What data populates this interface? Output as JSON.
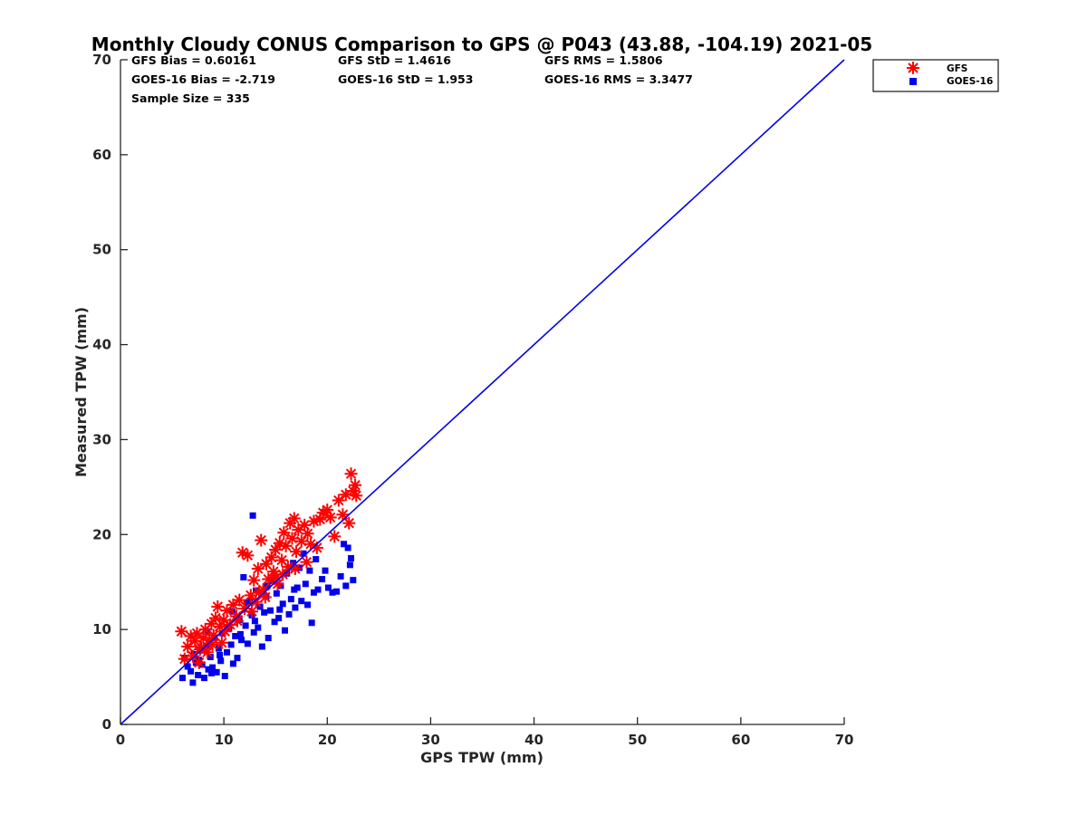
{
  "chart_data": {
    "type": "scatter",
    "title": "Monthly Cloudy CONUS Comparison to GPS @ P043 (43.88, -104.19) 2021-05",
    "xlabel": "GPS TPW (mm)",
    "ylabel": "Measured TPW (mm)",
    "xlim": [
      0,
      70
    ],
    "ylim": [
      0,
      70
    ],
    "xticks": [
      "0",
      "10",
      "20",
      "30",
      "40",
      "50",
      "60",
      "70"
    ],
    "yticks": [
      "0",
      "10",
      "20",
      "30",
      "40",
      "50",
      "60",
      "70"
    ],
    "grid": false,
    "legend_position": "top-right outside",
    "stats": {
      "gfs_bias": "GFS Bias = 0.60161",
      "gfs_std": "GFS StD = 1.4616",
      "gfs_rms": "GFS RMS = 1.5806",
      "goes_bias": "GOES-16 Bias = -2.719",
      "goes_std": "GOES-16 StD = 1.953",
      "goes_rms": "GOES-16 RMS = 3.3477",
      "sample_size": "Sample Size = 335"
    },
    "reference_line": {
      "x": [
        0,
        70
      ],
      "y": [
        0,
        70
      ],
      "color": "#0000ee"
    },
    "series": [
      {
        "name": "GFS",
        "marker": "asterisk",
        "color": "#ff0000",
        "points": [
          [
            5.9,
            9.8
          ],
          [
            6.2,
            6.9
          ],
          [
            6.5,
            8.2
          ],
          [
            6.8,
            9.3
          ],
          [
            7.0,
            7.2
          ],
          [
            7.2,
            8.8
          ],
          [
            7.4,
            9.6
          ],
          [
            7.6,
            6.5
          ],
          [
            7.8,
            8.1
          ],
          [
            8.0,
            9.1
          ],
          [
            8.2,
            10.0
          ],
          [
            8.4,
            7.6
          ],
          [
            8.6,
            8.9
          ],
          [
            8.8,
            10.6
          ],
          [
            9.0,
            9.4
          ],
          [
            9.2,
            11.2
          ],
          [
            9.4,
            12.4
          ],
          [
            9.6,
            10.3
          ],
          [
            9.8,
            8.6
          ],
          [
            10.0,
            11.0
          ],
          [
            10.3,
            12.0
          ],
          [
            10.6,
            10.5
          ],
          [
            10.9,
            12.6
          ],
          [
            11.2,
            11.4
          ],
          [
            11.5,
            13.1
          ],
          [
            11.8,
            18.1
          ],
          [
            12.0,
            12.2
          ],
          [
            12.3,
            17.8
          ],
          [
            12.6,
            13.6
          ],
          [
            12.9,
            15.2
          ],
          [
            13.1,
            12.9
          ],
          [
            13.3,
            16.4
          ],
          [
            13.6,
            19.4
          ],
          [
            13.8,
            14.2
          ],
          [
            14.1,
            16.9
          ],
          [
            14.3,
            15.3
          ],
          [
            14.6,
            17.6
          ],
          [
            14.8,
            16.1
          ],
          [
            15.0,
            18.4
          ],
          [
            15.2,
            14.8
          ],
          [
            15.4,
            19.1
          ],
          [
            15.6,
            17.3
          ],
          [
            15.8,
            20.2
          ],
          [
            16.0,
            18.8
          ],
          [
            16.2,
            16.6
          ],
          [
            16.4,
            21.2
          ],
          [
            16.6,
            19.6
          ],
          [
            16.8,
            21.7
          ],
          [
            17.0,
            18.2
          ],
          [
            17.2,
            20.5
          ],
          [
            17.5,
            19.3
          ],
          [
            17.8,
            21.0
          ],
          [
            18.1,
            20.1
          ],
          [
            18.4,
            19.0
          ],
          [
            18.7,
            21.4
          ],
          [
            19.0,
            18.6
          ],
          [
            19.3,
            21.6
          ],
          [
            19.6,
            22.3
          ],
          [
            20.0,
            22.6
          ],
          [
            20.3,
            21.8
          ],
          [
            20.7,
            19.8
          ],
          [
            21.1,
            23.6
          ],
          [
            21.5,
            22.1
          ],
          [
            21.8,
            24.2
          ],
          [
            22.1,
            21.2
          ],
          [
            22.3,
            26.4
          ],
          [
            22.5,
            24.6
          ],
          [
            22.7,
            25.2
          ],
          [
            22.8,
            24.1
          ],
          [
            15.7,
            15.8
          ],
          [
            14.0,
            13.4
          ],
          [
            12.7,
            11.9
          ],
          [
            11.3,
            10.9
          ],
          [
            10.1,
            9.8
          ],
          [
            8.9,
            8.4
          ],
          [
            7.7,
            7.9
          ],
          [
            16.9,
            16.4
          ],
          [
            18.0,
            17.1
          ],
          [
            13.4,
            13.9
          ],
          [
            15.1,
            15.5
          ]
        ]
      },
      {
        "name": "GOES-16",
        "marker": "square",
        "color": "#0000ee",
        "points": [
          [
            6.0,
            4.9
          ],
          [
            6.2,
            7.0
          ],
          [
            6.5,
            6.1
          ],
          [
            6.8,
            5.6
          ],
          [
            7.0,
            4.4
          ],
          [
            7.1,
            7.4
          ],
          [
            7.3,
            6.5
          ],
          [
            7.5,
            5.2
          ],
          [
            7.7,
            7.8
          ],
          [
            7.9,
            6.3
          ],
          [
            8.1,
            4.9
          ],
          [
            8.3,
            8.3
          ],
          [
            8.5,
            5.8
          ],
          [
            8.7,
            7.1
          ],
          [
            8.9,
            6.0
          ],
          [
            9.1,
            9.1
          ],
          [
            9.3,
            5.5
          ],
          [
            9.5,
            8.0
          ],
          [
            9.7,
            6.7
          ],
          [
            9.9,
            9.6
          ],
          [
            10.1,
            5.1
          ],
          [
            10.3,
            7.6
          ],
          [
            10.5,
            10.1
          ],
          [
            10.7,
            8.4
          ],
          [
            10.9,
            6.4
          ],
          [
            11.1,
            9.3
          ],
          [
            11.3,
            7.0
          ],
          [
            11.5,
            11.0
          ],
          [
            11.7,
            8.9
          ],
          [
            11.9,
            15.5
          ],
          [
            12.1,
            10.4
          ],
          [
            12.3,
            8.5
          ],
          [
            12.5,
            13.0
          ],
          [
            12.7,
            11.5
          ],
          [
            12.8,
            22.0
          ],
          [
            12.9,
            9.7
          ],
          [
            13.1,
            14.1
          ],
          [
            13.3,
            10.2
          ],
          [
            13.5,
            12.4
          ],
          [
            13.7,
            8.2
          ],
          [
            13.9,
            11.8
          ],
          [
            14.1,
            13.5
          ],
          [
            14.3,
            9.1
          ],
          [
            14.5,
            12.0
          ],
          [
            14.7,
            15.1
          ],
          [
            14.9,
            10.8
          ],
          [
            15.1,
            13.8
          ],
          [
            15.3,
            11.2
          ],
          [
            15.5,
            14.6
          ],
          [
            15.7,
            12.7
          ],
          [
            15.9,
            9.9
          ],
          [
            16.1,
            15.9
          ],
          [
            16.3,
            11.6
          ],
          [
            16.5,
            13.2
          ],
          [
            16.7,
            17.0
          ],
          [
            16.9,
            12.3
          ],
          [
            17.1,
            14.4
          ],
          [
            17.3,
            16.5
          ],
          [
            17.5,
            13.0
          ],
          [
            17.7,
            18.0
          ],
          [
            17.9,
            14.8
          ],
          [
            18.1,
            12.6
          ],
          [
            18.3,
            16.2
          ],
          [
            18.5,
            10.7
          ],
          [
            18.7,
            13.9
          ],
          [
            18.9,
            17.4
          ],
          [
            19.1,
            14.2
          ],
          [
            19.5,
            15.3
          ],
          [
            19.8,
            16.2
          ],
          [
            20.1,
            14.4
          ],
          [
            20.5,
            13.9
          ],
          [
            20.9,
            14.0
          ],
          [
            21.3,
            15.6
          ],
          [
            21.6,
            19.0
          ],
          [
            21.8,
            14.6
          ],
          [
            22.0,
            18.6
          ],
          [
            22.2,
            16.8
          ],
          [
            22.3,
            17.5
          ],
          [
            22.5,
            15.2
          ],
          [
            8.4,
            9.8
          ],
          [
            10.8,
            11.9
          ],
          [
            12.2,
            12.8
          ],
          [
            14.2,
            14.6
          ],
          [
            9.6,
            7.3
          ],
          [
            11.6,
            9.5
          ],
          [
            13.0,
            10.9
          ],
          [
            15.4,
            12.1
          ],
          [
            16.8,
            14.2
          ],
          [
            7.6,
            6.8
          ],
          [
            8.8,
            5.4
          ]
        ]
      }
    ]
  }
}
